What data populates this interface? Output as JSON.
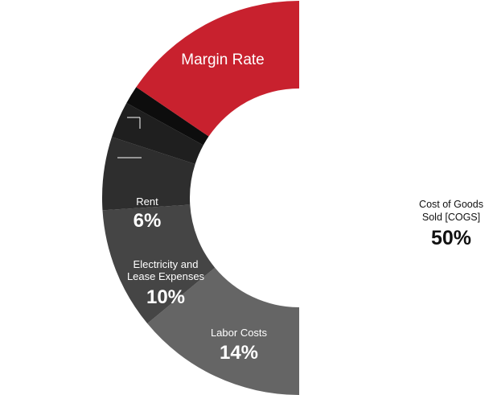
{
  "chart_data": {
    "type": "pie",
    "donut": true,
    "slices": [
      {
        "label": "Cost of Goods Sold [COGS]",
        "value": 50,
        "value_label": "50%",
        "color": "#ffffff"
      },
      {
        "label": "Labor Costs",
        "value": 14,
        "value_label": "14%",
        "color": "#656565"
      },
      {
        "label": "Electricity and Lease Expenses",
        "value": 10,
        "value_label": "10%",
        "color": "#454545"
      },
      {
        "label": "Rent",
        "value": 6,
        "value_label": "6%",
        "color": "#2e2e2e"
      },
      {
        "label": "",
        "value": 3,
        "value_label": "",
        "color": "#1f1f1f"
      },
      {
        "label": "",
        "value": 1.5,
        "value_label": "",
        "color": "#0d0d0d"
      },
      {
        "label": "Margin Rate",
        "value": 15.5,
        "value_label": "",
        "color": "#c8212e"
      }
    ]
  },
  "labels": {
    "cogs_line1": "Cost of Goods",
    "cogs_line2": "Sold [COGS]",
    "cogs_value": "50%",
    "labor_name": "Labor Costs",
    "labor_value": "14%",
    "elec_line1": "Electricity and",
    "elec_line2": "Lease Expenses",
    "elec_value": "10%",
    "rent_name": "Rent",
    "rent_value": "6%",
    "margin_name": "Margin Rate"
  }
}
